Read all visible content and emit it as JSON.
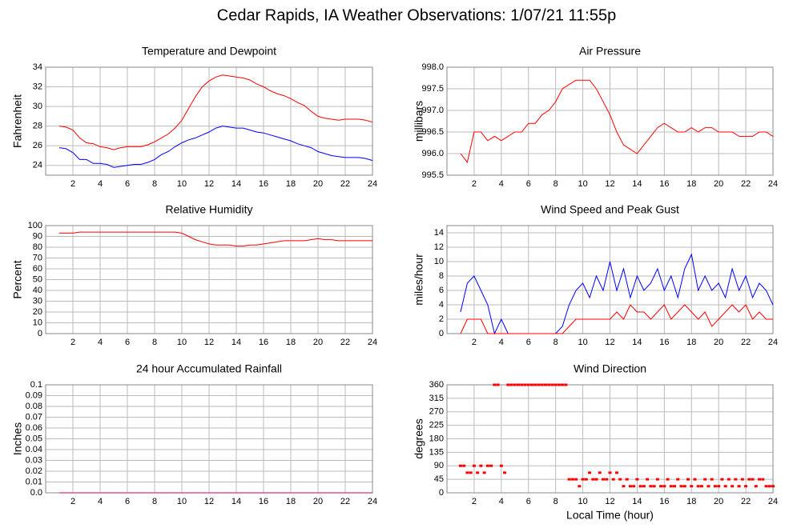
{
  "title": "Cedar Rapids, IA Weather Observations: 1/07/21 11:55p",
  "chart_data": [
    {
      "type": "line",
      "title": "Temperature and Dewpoint",
      "ylabel": "Fahrenheit",
      "xlim": [
        0,
        24
      ],
      "xticks": [
        2,
        4,
        6,
        8,
        10,
        12,
        14,
        16,
        18,
        20,
        22,
        24
      ],
      "ylim": [
        23,
        34
      ],
      "yticks": [
        24,
        26,
        28,
        30,
        32,
        34
      ],
      "grid": true,
      "x": [
        1,
        1.5,
        2,
        2.5,
        3,
        3.5,
        4,
        4.5,
        5,
        5.5,
        6,
        6.5,
        7,
        7.5,
        8,
        8.5,
        9,
        9.5,
        10,
        10.5,
        11,
        11.5,
        12,
        12.5,
        13,
        13.5,
        14,
        14.5,
        15,
        15.5,
        16,
        16.5,
        17,
        17.5,
        18,
        18.5,
        19,
        19.5,
        20,
        20.5,
        21,
        21.5,
        22,
        22.5,
        23,
        23.5,
        24
      ],
      "series": [
        {
          "color": "#ff0000",
          "values": [
            28,
            27.9,
            27.6,
            26.8,
            26.3,
            26.2,
            25.9,
            25.8,
            25.6,
            25.8,
            25.9,
            25.9,
            25.9,
            26.1,
            26.4,
            26.8,
            27.2,
            27.8,
            28.6,
            29.8,
            31,
            32,
            32.6,
            33,
            33.2,
            33.1,
            33,
            32.9,
            32.7,
            32.3,
            32,
            31.6,
            31.3,
            31.1,
            30.8,
            30.4,
            30.1,
            29.5,
            29,
            28.8,
            28.7,
            28.6,
            28.7,
            28.7,
            28.7,
            28.6,
            28.4
          ]
        },
        {
          "color": "#0000ff",
          "values": [
            25.8,
            25.7,
            25.3,
            24.6,
            24.6,
            24.2,
            24.2,
            24.1,
            23.8,
            23.9,
            24,
            24.1,
            24.1,
            24.3,
            24.6,
            25.1,
            25.4,
            25.9,
            26.3,
            26.6,
            26.8,
            27.1,
            27.4,
            27.8,
            28,
            27.9,
            27.8,
            27.8,
            27.6,
            27.4,
            27.3,
            27.1,
            26.9,
            26.7,
            26.5,
            26.2,
            26,
            25.8,
            25.4,
            25.2,
            25,
            24.9,
            24.8,
            24.8,
            24.8,
            24.7,
            24.5
          ]
        }
      ]
    },
    {
      "type": "line",
      "title": "Air Pressure",
      "ylabel": "millibars",
      "xlim": [
        0,
        24
      ],
      "xticks": [
        2,
        4,
        6,
        8,
        10,
        12,
        14,
        16,
        18,
        20,
        22,
        24
      ],
      "ylim": [
        995.5,
        998
      ],
      "yticks": [
        995.5,
        {
          "value": 996,
          "label": "996.0"
        },
        996.5,
        {
          "value": 997,
          "label": "997.0"
        },
        997.5,
        {
          "value": 998,
          "label": "998.0"
        }
      ],
      "grid": true,
      "x": [
        1,
        1.5,
        2,
        2.5,
        3,
        3.5,
        4,
        4.5,
        5,
        5.5,
        6,
        6.5,
        7,
        7.5,
        8,
        8.5,
        9,
        9.5,
        10,
        10.5,
        11,
        11.5,
        12,
        12.5,
        13,
        13.5,
        14,
        14.5,
        15,
        15.5,
        16,
        16.5,
        17,
        17.5,
        18,
        18.5,
        19,
        19.5,
        20,
        20.5,
        21,
        21.5,
        22,
        22.5,
        23,
        23.5,
        24
      ],
      "series": [
        {
          "color": "#ff0000",
          "values": [
            996.0,
            995.8,
            996.5,
            996.5,
            996.3,
            996.4,
            996.3,
            996.4,
            996.5,
            996.5,
            996.7,
            996.7,
            996.9,
            997.0,
            997.2,
            997.5,
            997.6,
            997.7,
            997.7,
            997.7,
            997.5,
            997.2,
            996.9,
            996.5,
            996.2,
            996.1,
            996.0,
            996.2,
            996.4,
            996.6,
            996.7,
            996.6,
            996.5,
            996.5,
            996.6,
            996.5,
            996.6,
            996.6,
            996.5,
            996.5,
            996.5,
            996.4,
            996.4,
            996.4,
            996.5,
            996.5,
            996.4
          ]
        }
      ]
    },
    {
      "type": "line",
      "title": "Relative Humidity",
      "ylabel": "Percent",
      "xlim": [
        0,
        24
      ],
      "xticks": [
        2,
        4,
        6,
        8,
        10,
        12,
        14,
        16,
        18,
        20,
        22,
        24
      ],
      "ylim": [
        0,
        100
      ],
      "yticks": [
        0,
        10,
        20,
        30,
        40,
        50,
        60,
        70,
        80,
        90,
        100
      ],
      "grid": true,
      "x": [
        1,
        1.5,
        2,
        2.5,
        3,
        3.5,
        4,
        4.5,
        5,
        5.5,
        6,
        6.5,
        7,
        7.5,
        8,
        8.5,
        9,
        9.5,
        10,
        10.5,
        11,
        11.5,
        12,
        12.5,
        13,
        13.5,
        14,
        14.5,
        15,
        15.5,
        16,
        16.5,
        17,
        17.5,
        18,
        18.5,
        19,
        19.5,
        20,
        20.5,
        21,
        21.5,
        22,
        22.5,
        23,
        23.5,
        24
      ],
      "series": [
        {
          "color": "#ff0000",
          "values": [
            93,
            93,
            93,
            94,
            94,
            94,
            94,
            94,
            94,
            94,
            94,
            94,
            94,
            94,
            94,
            94,
            94,
            94,
            93,
            90,
            87,
            85,
            83,
            82,
            82,
            82,
            81,
            81,
            82,
            82,
            83,
            84,
            85,
            86,
            86,
            86,
            86,
            87,
            88,
            87,
            87,
            86,
            86,
            86,
            86,
            86,
            86
          ]
        }
      ]
    },
    {
      "type": "line",
      "title": "Wind Speed and Peak Gust",
      "ylabel": "miles/hour",
      "xlim": [
        0,
        24
      ],
      "xticks": [
        2,
        4,
        6,
        8,
        10,
        12,
        14,
        16,
        18,
        20,
        22,
        24
      ],
      "ylim": [
        0,
        15
      ],
      "yticks": [
        0,
        2,
        4,
        6,
        8,
        10,
        12,
        14
      ],
      "grid": true,
      "x": [
        1,
        1.5,
        2,
        2.5,
        3,
        3.5,
        4,
        4.5,
        5,
        5.5,
        6,
        6.5,
        7,
        7.5,
        8,
        8.5,
        9,
        9.5,
        10,
        10.5,
        11,
        11.5,
        12,
        12.5,
        13,
        13.5,
        14,
        14.5,
        15,
        15.5,
        16,
        16.5,
        17,
        17.5,
        18,
        18.5,
        19,
        19.5,
        20,
        20.5,
        21,
        21.5,
        22,
        22.5,
        23,
        23.5,
        24
      ],
      "series": [
        {
          "color": "#0000ff",
          "values": [
            3,
            7,
            8,
            6,
            4,
            0,
            2,
            0,
            0,
            0,
            0,
            0,
            0,
            0,
            0,
            1,
            4,
            6,
            7,
            5,
            8,
            6,
            10,
            6,
            9,
            5,
            8,
            6,
            7,
            9,
            6,
            8,
            5,
            9,
            11,
            6,
            8,
            6,
            7,
            5,
            9,
            6,
            8,
            5,
            7,
            6,
            4
          ]
        },
        {
          "color": "#ff0000",
          "values": [
            0,
            2,
            2,
            2,
            0,
            0,
            0,
            0,
            0,
            0,
            0,
            0,
            0,
            0,
            0,
            0,
            1,
            2,
            2,
            2,
            2,
            2,
            2,
            3,
            2,
            4,
            3,
            3,
            2,
            3,
            4,
            2,
            3,
            4,
            3,
            2,
            3,
            1,
            2,
            3,
            4,
            3,
            4,
            2,
            3,
            2,
            2
          ]
        }
      ]
    },
    {
      "type": "line",
      "title": "24 hour Accumulated Rainfall",
      "ylabel": "Inches",
      "xlim": [
        0,
        24
      ],
      "xticks": [
        2,
        4,
        6,
        8,
        10,
        12,
        14,
        16,
        18,
        20,
        22,
        24
      ],
      "ylim": [
        0,
        0.1
      ],
      "yticks": [
        {
          "value": 0,
          "label": "0.0"
        },
        0.01,
        0.02,
        0.03,
        0.04,
        0.05,
        0.06,
        0.07,
        0.08,
        0.09,
        0.1
      ],
      "grid": true,
      "x": [
        1,
        1.5,
        2,
        2.5,
        3,
        3.5,
        4,
        4.5,
        5,
        5.5,
        6,
        6.5,
        7,
        7.5,
        8,
        8.5,
        9,
        9.5,
        10,
        10.5,
        11,
        11.5,
        12,
        12.5,
        13,
        13.5,
        14,
        14.5,
        15,
        15.5,
        16,
        16.5,
        17,
        17.5,
        18,
        18.5,
        19,
        19.5,
        20,
        20.5,
        21,
        21.5,
        22,
        22.5,
        23,
        23.5,
        24
      ],
      "series": [
        {
          "color": "#cc0066",
          "values": [
            0,
            0,
            0,
            0,
            0,
            0,
            0,
            0,
            0,
            0,
            0,
            0,
            0,
            0,
            0,
            0,
            0,
            0,
            0,
            0,
            0,
            0,
            0,
            0,
            0,
            0,
            0,
            0,
            0,
            0,
            0,
            0,
            0,
            0,
            0,
            0,
            0,
            0,
            0,
            0,
            0,
            0,
            0,
            0,
            0,
            0,
            0
          ]
        }
      ]
    },
    {
      "type": "scatter",
      "title": "Wind Direction",
      "ylabel": "degrees",
      "xlabel": "Local Time (hour)",
      "xlim": [
        0,
        24
      ],
      "xticks": [
        2,
        4,
        6,
        8,
        10,
        12,
        14,
        16,
        18,
        20,
        22,
        24
      ],
      "ylim": [
        0,
        360
      ],
      "yticks": [
        0,
        45,
        90,
        135,
        180,
        225,
        270,
        315,
        360
      ],
      "grid": true,
      "x": [
        1,
        1.25,
        1.5,
        1.75,
        2,
        2.25,
        2.5,
        2.75,
        3,
        3.25,
        3.5,
        3.75,
        4,
        4.25,
        4.5,
        4.75,
        5,
        5.25,
        5.5,
        5.75,
        6,
        6.25,
        6.5,
        6.75,
        7,
        7.25,
        7.5,
        7.75,
        8,
        8.25,
        8.5,
        8.75,
        9,
        9.25,
        9.5,
        9.75,
        10,
        10.25,
        10.5,
        10.75,
        11,
        11.25,
        11.5,
        11.75,
        12,
        12.25,
        12.5,
        12.75,
        13,
        13.25,
        13.5,
        13.75,
        14,
        14.25,
        14.5,
        14.75,
        15,
        15.25,
        15.5,
        15.75,
        16,
        16.25,
        16.5,
        16.75,
        17,
        17.25,
        17.5,
        17.75,
        18,
        18.25,
        18.5,
        18.75,
        19,
        19.25,
        19.5,
        19.75,
        20,
        20.25,
        20.5,
        20.75,
        21,
        21.25,
        21.5,
        21.75,
        22,
        22.25,
        22.5,
        22.75,
        23,
        23.25,
        23.5,
        23.75,
        24
      ],
      "series": [
        {
          "color": "#ff0000",
          "values": [
            90,
            90,
            67,
            67,
            90,
            67,
            90,
            67,
            90,
            90,
            360,
            360,
            90,
            67,
            360,
            360,
            360,
            360,
            360,
            360,
            360,
            360,
            360,
            360,
            360,
            360,
            360,
            360,
            360,
            360,
            360,
            360,
            45,
            45,
            45,
            22,
            45,
            45,
            67,
            45,
            45,
            67,
            45,
            45,
            67,
            45,
            67,
            45,
            22,
            45,
            22,
            22,
            45,
            22,
            22,
            45,
            22,
            22,
            45,
            22,
            22,
            45,
            22,
            22,
            45,
            22,
            22,
            45,
            22,
            45,
            22,
            22,
            45,
            22,
            45,
            22,
            22,
            45,
            22,
            45,
            22,
            45,
            22,
            45,
            22,
            45,
            45,
            22,
            45,
            45,
            22,
            22,
            22
          ]
        }
      ]
    }
  ]
}
